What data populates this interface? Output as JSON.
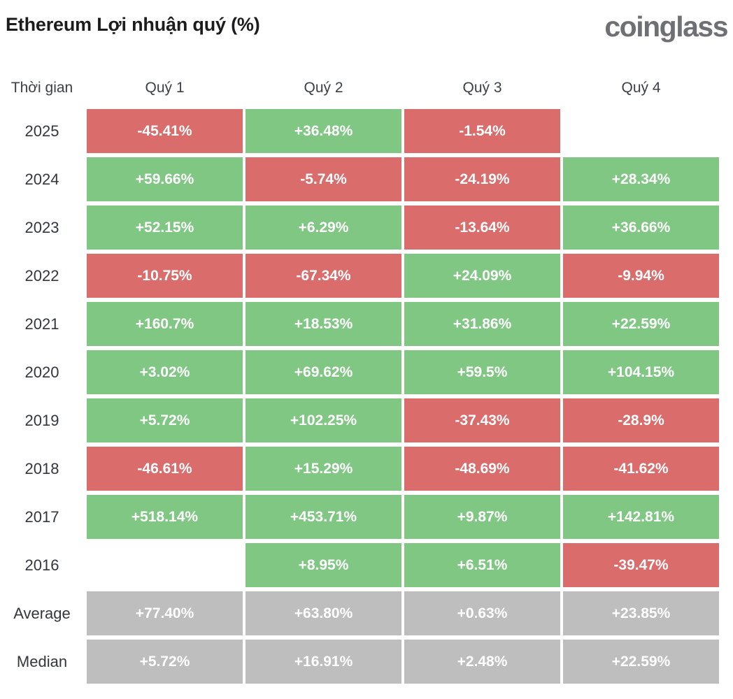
{
  "header": {
    "title": "Ethereum Lợi nhuận quý (%)",
    "logo": "coinglass"
  },
  "colors": {
    "positive": "#81C784",
    "negative": "#DB6C6C",
    "neutral": "#BEBEBE"
  },
  "table": {
    "headers": [
      "Thời gian",
      "Quý 1",
      "Quý 2",
      "Quý 3",
      "Quý 4"
    ],
    "rows": [
      {
        "label": "2025",
        "cells": [
          {
            "text": "-45.41%",
            "color": "negative"
          },
          {
            "text": "+36.48%",
            "color": "positive"
          },
          {
            "text": "-1.54%",
            "color": "negative"
          },
          {
            "text": "",
            "color": "none"
          }
        ]
      },
      {
        "label": "2024",
        "cells": [
          {
            "text": "+59.66%",
            "color": "positive"
          },
          {
            "text": "-5.74%",
            "color": "negative"
          },
          {
            "text": "-24.19%",
            "color": "negative"
          },
          {
            "text": "+28.34%",
            "color": "positive"
          }
        ]
      },
      {
        "label": "2023",
        "cells": [
          {
            "text": "+52.15%",
            "color": "positive"
          },
          {
            "text": "+6.29%",
            "color": "positive"
          },
          {
            "text": "-13.64%",
            "color": "negative"
          },
          {
            "text": "+36.66%",
            "color": "positive"
          }
        ]
      },
      {
        "label": "2022",
        "cells": [
          {
            "text": "-10.75%",
            "color": "negative"
          },
          {
            "text": "-67.34%",
            "color": "negative"
          },
          {
            "text": "+24.09%",
            "color": "positive"
          },
          {
            "text": "-9.94%",
            "color": "negative"
          }
        ]
      },
      {
        "label": "2021",
        "cells": [
          {
            "text": "+160.7%",
            "color": "positive"
          },
          {
            "text": "+18.53%",
            "color": "positive"
          },
          {
            "text": "+31.86%",
            "color": "positive"
          },
          {
            "text": "+22.59%",
            "color": "positive"
          }
        ]
      },
      {
        "label": "2020",
        "cells": [
          {
            "text": "+3.02%",
            "color": "positive"
          },
          {
            "text": "+69.62%",
            "color": "positive"
          },
          {
            "text": "+59.5%",
            "color": "positive"
          },
          {
            "text": "+104.15%",
            "color": "positive"
          }
        ]
      },
      {
        "label": "2019",
        "cells": [
          {
            "text": "+5.72%",
            "color": "positive"
          },
          {
            "text": "+102.25%",
            "color": "positive"
          },
          {
            "text": "-37.43%",
            "color": "negative"
          },
          {
            "text": "-28.9%",
            "color": "negative"
          }
        ]
      },
      {
        "label": "2018",
        "cells": [
          {
            "text": "-46.61%",
            "color": "negative"
          },
          {
            "text": "+15.29%",
            "color": "positive"
          },
          {
            "text": "-48.69%",
            "color": "negative"
          },
          {
            "text": "-41.62%",
            "color": "negative"
          }
        ]
      },
      {
        "label": "2017",
        "cells": [
          {
            "text": "+518.14%",
            "color": "positive"
          },
          {
            "text": "+453.71%",
            "color": "positive"
          },
          {
            "text": "+9.87%",
            "color": "positive"
          },
          {
            "text": "+142.81%",
            "color": "positive"
          }
        ]
      },
      {
        "label": "2016",
        "cells": [
          {
            "text": "",
            "color": "none"
          },
          {
            "text": "+8.95%",
            "color": "positive"
          },
          {
            "text": "+6.51%",
            "color": "positive"
          },
          {
            "text": "-39.47%",
            "color": "negative"
          }
        ]
      },
      {
        "label": "Average",
        "cells": [
          {
            "text": "+77.40%",
            "color": "neutral"
          },
          {
            "text": "+63.80%",
            "color": "neutral"
          },
          {
            "text": "+0.63%",
            "color": "neutral"
          },
          {
            "text": "+23.85%",
            "color": "neutral"
          }
        ]
      },
      {
        "label": "Median",
        "cells": [
          {
            "text": "+5.72%",
            "color": "neutral"
          },
          {
            "text": "+16.91%",
            "color": "neutral"
          },
          {
            "text": "+2.48%",
            "color": "neutral"
          },
          {
            "text": "+22.59%",
            "color": "neutral"
          }
        ]
      }
    ]
  },
  "chart_data": {
    "type": "heatmap",
    "title": "Ethereum Lợi nhuận quý (%)",
    "columns": [
      "Quý 1",
      "Quý 2",
      "Quý 3",
      "Quý 4"
    ],
    "rows": [
      "2025",
      "2024",
      "2023",
      "2022",
      "2021",
      "2020",
      "2019",
      "2018",
      "2017",
      "2016",
      "Average",
      "Median"
    ],
    "values_percent": [
      [
        -45.41,
        36.48,
        -1.54,
        null
      ],
      [
        59.66,
        -5.74,
        -24.19,
        28.34
      ],
      [
        52.15,
        6.29,
        -13.64,
        36.66
      ],
      [
        -10.75,
        -67.34,
        24.09,
        -9.94
      ],
      [
        160.7,
        18.53,
        31.86,
        22.59
      ],
      [
        3.02,
        69.62,
        59.5,
        104.15
      ],
      [
        5.72,
        102.25,
        -37.43,
        -28.9
      ],
      [
        -46.61,
        15.29,
        -48.69,
        -41.62
      ],
      [
        518.14,
        453.71,
        9.87,
        142.81
      ],
      [
        null,
        8.95,
        6.51,
        -39.47
      ],
      [
        77.4,
        63.8,
        0.63,
        23.85
      ],
      [
        5.72,
        16.91,
        2.48,
        22.59
      ]
    ],
    "legend": "green = positive quarter, red = negative quarter, gray = Average/Median summary rows",
    "watermark": "coinglass"
  }
}
